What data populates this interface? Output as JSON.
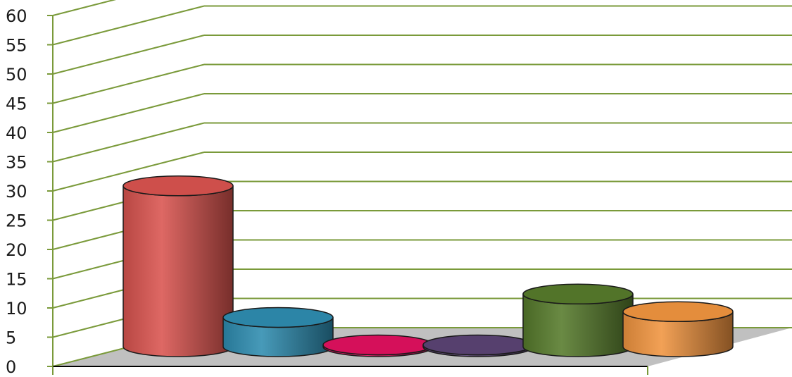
{
  "chart_data": {
    "type": "bar",
    "style": "3d-cylinder",
    "categories": [
      "",
      "",
      "",
      "",
      "",
      ""
    ],
    "values": [
      27.5,
      5,
      0.3,
      0.3,
      9,
      6
    ],
    "colors": [
      "#d9534f",
      "#2e8cb0",
      "#e0115f",
      "#5a4374",
      "#567a2b",
      "#f0943f"
    ],
    "ylim": [
      0,
      60
    ],
    "yticks": [
      "0",
      "5",
      "10",
      "15",
      "20",
      "25",
      "30",
      "35",
      "40",
      "45",
      "50",
      "55",
      "60"
    ],
    "grid": true,
    "grid_color": "#7a9a3a",
    "floor_color": "#c0c0c0",
    "legend": "none",
    "title": "",
    "xlabel": "",
    "ylabel": ""
  }
}
